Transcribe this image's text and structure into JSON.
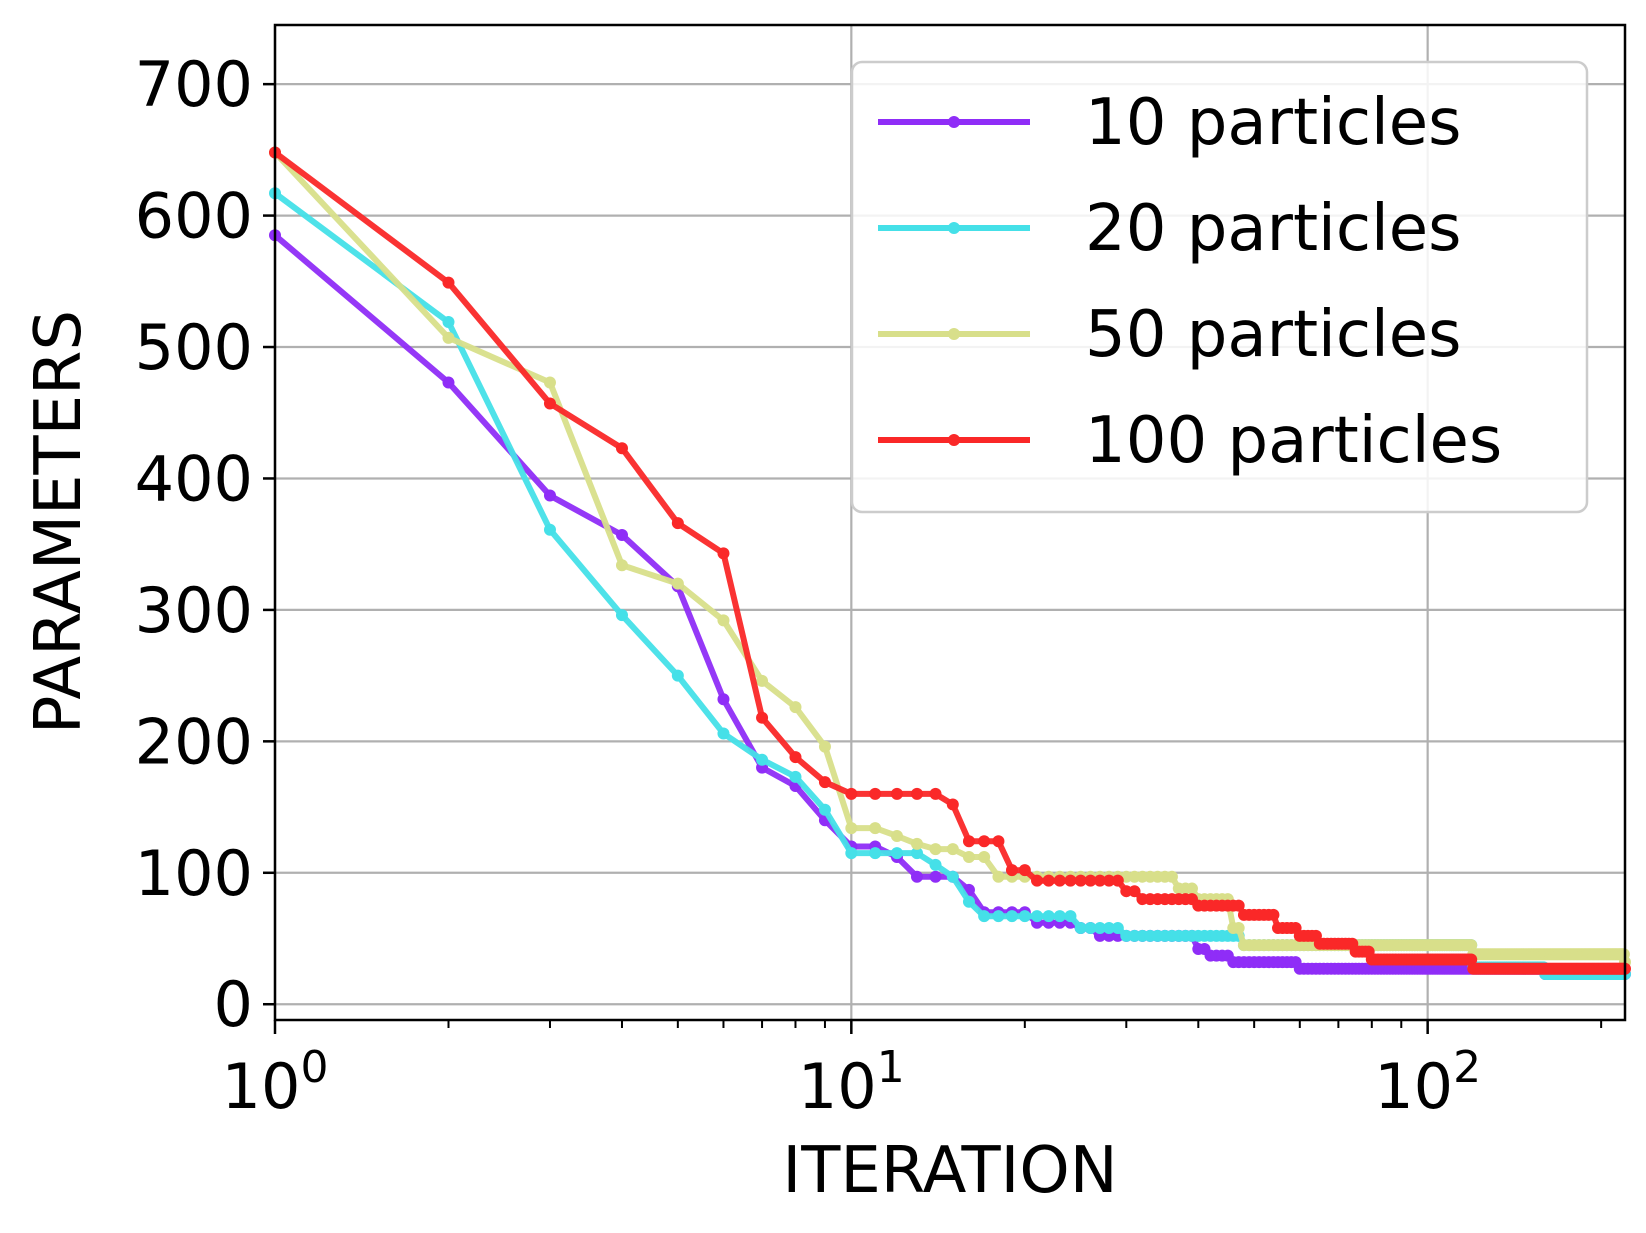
{
  "chart_data": {
    "type": "line",
    "title": "",
    "xlabel": "ITERATION",
    "ylabel": "PARAMETERS",
    "xscale": "log",
    "xlim": [
      1,
      220
    ],
    "ylim": [
      -12,
      745
    ],
    "grid": true,
    "legend_position": "top-right",
    "x_ticks": [
      {
        "value": 1,
        "base": "10",
        "exp": "0"
      },
      {
        "value": 10,
        "base": "10",
        "exp": "1"
      },
      {
        "value": 100,
        "base": "10",
        "exp": "2"
      }
    ],
    "y_ticks": [
      {
        "value": 0,
        "label": "0"
      },
      {
        "value": 100,
        "label": "100"
      },
      {
        "value": 200,
        "label": "200"
      },
      {
        "value": 300,
        "label": "300"
      },
      {
        "value": 400,
        "label": "400"
      },
      {
        "value": 500,
        "label": "500"
      },
      {
        "value": 600,
        "label": "600"
      },
      {
        "value": 700,
        "label": "700"
      }
    ],
    "series": [
      {
        "name": "10 particles",
        "color": "#8f2df7",
        "steps": [
          [
            1,
            585
          ],
          [
            2,
            473
          ],
          [
            3,
            387
          ],
          [
            4,
            357
          ],
          [
            5,
            318
          ],
          [
            6,
            232
          ],
          [
            7,
            180
          ],
          [
            8,
            166
          ],
          [
            9,
            140
          ],
          [
            10,
            120
          ],
          [
            11,
            120
          ],
          [
            12,
            112
          ],
          [
            13,
            97
          ],
          [
            14,
            97
          ],
          [
            15,
            97
          ],
          [
            16,
            87
          ],
          [
            17,
            70
          ],
          [
            21,
            62
          ],
          [
            25,
            58
          ],
          [
            27,
            52
          ],
          [
            30,
            52
          ],
          [
            40,
            42
          ],
          [
            42,
            37
          ],
          [
            46,
            32
          ],
          [
            60,
            27
          ],
          [
            120,
            27
          ],
          [
            160,
            23
          ],
          [
            220,
            23
          ]
        ]
      },
      {
        "name": "20 particles",
        "color": "#45e0e8",
        "steps": [
          [
            1,
            617
          ],
          [
            2,
            519
          ],
          [
            3,
            361
          ],
          [
            4,
            296
          ],
          [
            5,
            250
          ],
          [
            6,
            206
          ],
          [
            7,
            186
          ],
          [
            8,
            173
          ],
          [
            9,
            148
          ],
          [
            10,
            115
          ],
          [
            11,
            115
          ],
          [
            12,
            115
          ],
          [
            14,
            106
          ],
          [
            15,
            97
          ],
          [
            16,
            78
          ],
          [
            17,
            67
          ],
          [
            18,
            67
          ],
          [
            19,
            67
          ],
          [
            21,
            67
          ],
          [
            25,
            58
          ],
          [
            30,
            52
          ],
          [
            48,
            45
          ],
          [
            120,
            28
          ],
          [
            160,
            23
          ],
          [
            220,
            23
          ]
        ]
      },
      {
        "name": "50 particles",
        "color": "#d8df8a",
        "steps": [
          [
            1,
            648
          ],
          [
            2,
            507
          ],
          [
            3,
            473
          ],
          [
            4,
            334
          ],
          [
            5,
            320
          ],
          [
            6,
            292
          ],
          [
            7,
            246
          ],
          [
            8,
            226
          ],
          [
            9,
            196
          ],
          [
            10,
            134
          ],
          [
            11,
            134
          ],
          [
            12,
            128
          ],
          [
            13,
            122
          ],
          [
            14,
            118
          ],
          [
            15,
            118
          ],
          [
            16,
            112
          ],
          [
            18,
            97
          ],
          [
            26,
            97
          ],
          [
            37,
            88
          ],
          [
            40,
            80
          ],
          [
            46,
            58
          ],
          [
            48,
            45
          ],
          [
            60,
            45
          ],
          [
            100,
            45
          ],
          [
            120,
            38
          ],
          [
            160,
            38
          ],
          [
            220,
            32
          ]
        ]
      },
      {
        "name": "100 particles",
        "color": "#fa2828",
        "steps": [
          [
            1,
            648
          ],
          [
            2,
            549
          ],
          [
            3,
            457
          ],
          [
            4,
            423
          ],
          [
            5,
            366
          ],
          [
            6,
            343
          ],
          [
            7,
            218
          ],
          [
            8,
            188
          ],
          [
            9,
            169
          ],
          [
            10,
            160
          ],
          [
            11,
            160
          ],
          [
            12,
            160
          ],
          [
            13,
            160
          ],
          [
            14,
            160
          ],
          [
            15,
            152
          ],
          [
            16,
            124
          ],
          [
            17,
            124
          ],
          [
            19,
            102
          ],
          [
            21,
            94
          ],
          [
            25,
            94
          ],
          [
            30,
            86
          ],
          [
            32,
            80
          ],
          [
            40,
            75
          ],
          [
            48,
            68
          ],
          [
            55,
            58
          ],
          [
            60,
            52
          ],
          [
            65,
            46
          ],
          [
            75,
            40
          ],
          [
            80,
            34
          ],
          [
            110,
            34
          ],
          [
            120,
            27
          ],
          [
            220,
            27
          ]
        ]
      }
    ]
  }
}
